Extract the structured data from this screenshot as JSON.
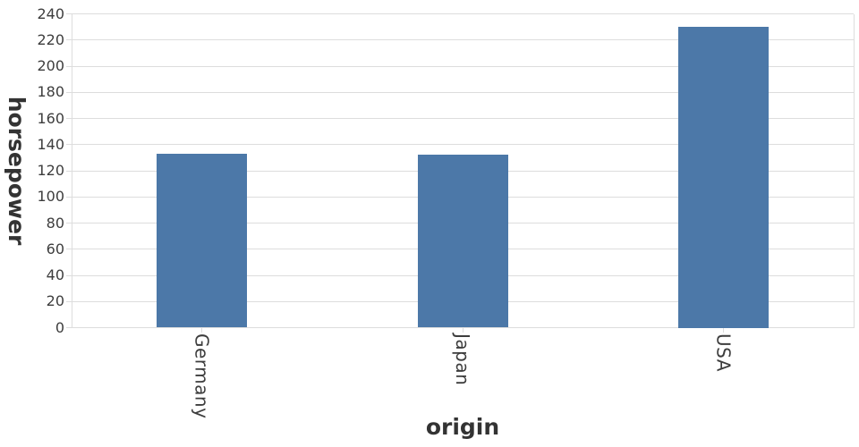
{
  "chart_data": {
    "type": "bar",
    "categories": [
      "Germany",
      "Japan",
      "USA"
    ],
    "values": [
      133,
      132,
      230
    ],
    "series_name": "horsepower",
    "title": "",
    "xlabel": "origin",
    "ylabel": "horsepower",
    "ylim": [
      0,
      240
    ],
    "ytick_step": 20,
    "yticks": [
      0,
      20,
      40,
      60,
      80,
      100,
      120,
      140,
      160,
      180,
      200,
      220,
      240
    ],
    "grid": true,
    "legend": false,
    "colors": {
      "bar": "#4c78a8",
      "grid": "#dddddd",
      "axis": "#dddddd",
      "tick": "#dddddd",
      "label_text": "#3d3d3d",
      "title_text": "#333333",
      "background": "#ffffff"
    }
  }
}
